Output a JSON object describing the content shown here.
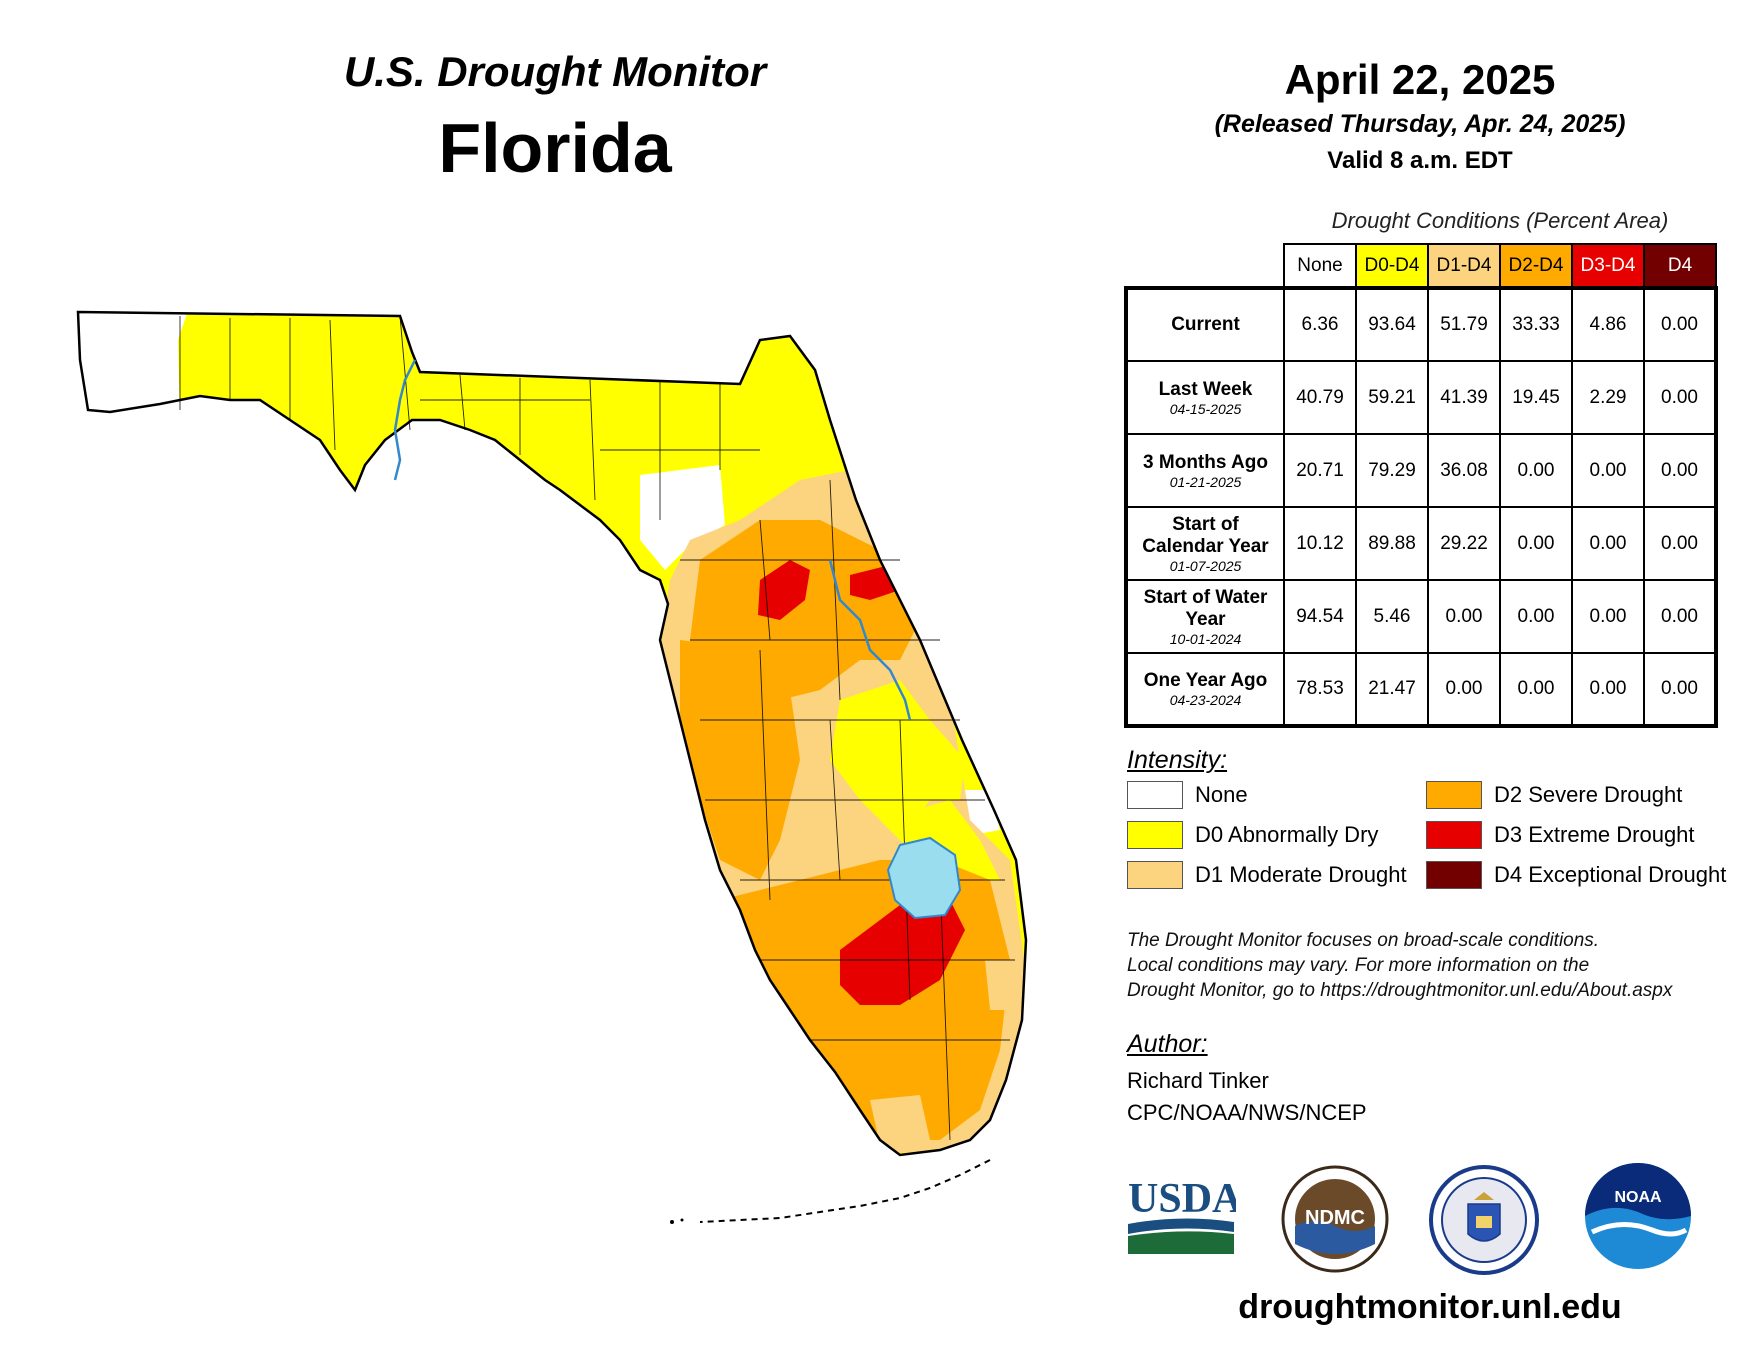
{
  "header": {
    "monitor_title": "U.S. Drought Monitor",
    "state": "Florida",
    "map_date": "April 22, 2025",
    "released": "(Released Thursday, Apr. 24, 2025)",
    "valid": "Valid 8 a.m. EDT"
  },
  "table": {
    "caption": "Drought Conditions (Percent Area)",
    "columns": [
      "None",
      "D0-D4",
      "D1-D4",
      "D2-D4",
      "D3-D4",
      "D4"
    ],
    "column_colors": [
      "#ffffff",
      "#ffff00",
      "#fcd37f",
      "#ffaa00",
      "#e60000",
      "#730000"
    ],
    "rows": [
      {
        "label": "Current",
        "date": "",
        "values": [
          "6.36",
          "93.64",
          "51.79",
          "33.33",
          "4.86",
          "0.00"
        ]
      },
      {
        "label": "Last Week",
        "date": "04-15-2025",
        "values": [
          "40.79",
          "59.21",
          "41.39",
          "19.45",
          "2.29",
          "0.00"
        ]
      },
      {
        "label": "3 Months Ago",
        "date": "01-21-2025",
        "values": [
          "20.71",
          "79.29",
          "36.08",
          "0.00",
          "0.00",
          "0.00"
        ]
      },
      {
        "label": "Start of Calendar Year",
        "date": "01-07-2025",
        "values": [
          "10.12",
          "89.88",
          "29.22",
          "0.00",
          "0.00",
          "0.00"
        ]
      },
      {
        "label": "Start of Water Year",
        "date": "10-01-2024",
        "values": [
          "94.54",
          "5.46",
          "0.00",
          "0.00",
          "0.00",
          "0.00"
        ]
      },
      {
        "label": "One Year Ago",
        "date": "04-23-2024",
        "values": [
          "78.53",
          "21.47",
          "0.00",
          "0.00",
          "0.00",
          "0.00"
        ]
      }
    ]
  },
  "legend": {
    "title": "Intensity:",
    "items": [
      {
        "label": "None",
        "color": "#ffffff"
      },
      {
        "label": "D0 Abnormally Dry",
        "color": "#ffff00"
      },
      {
        "label": "D1 Moderate Drought",
        "color": "#fcd37f"
      },
      {
        "label": "D2 Severe Drought",
        "color": "#ffaa00"
      },
      {
        "label": "D3 Extreme Drought",
        "color": "#e60000"
      },
      {
        "label": "D4 Exceptional Drought",
        "color": "#730000"
      }
    ]
  },
  "note": {
    "line1": "The Drought Monitor focuses on broad-scale conditions.",
    "line2": "Local conditions may vary. For more information on the",
    "line3": "Drought Monitor, go to https://droughtmonitor.unl.edu/About.aspx"
  },
  "author": {
    "title": "Author:",
    "name": "Richard Tinker",
    "org": "CPC/NOAA/NWS/NCEP"
  },
  "logos": {
    "usda": "USDA",
    "ndmc": "NDMC",
    "noaa": "NOAA"
  },
  "website": "droughtmonitor.unl.edu",
  "colors": {
    "none": "#ffffff",
    "d0": "#ffff00",
    "d1": "#fcd37f",
    "d2": "#ffaa00",
    "d3": "#e60000",
    "d4": "#730000",
    "water": "#99ddee",
    "river": "#3388cc"
  }
}
